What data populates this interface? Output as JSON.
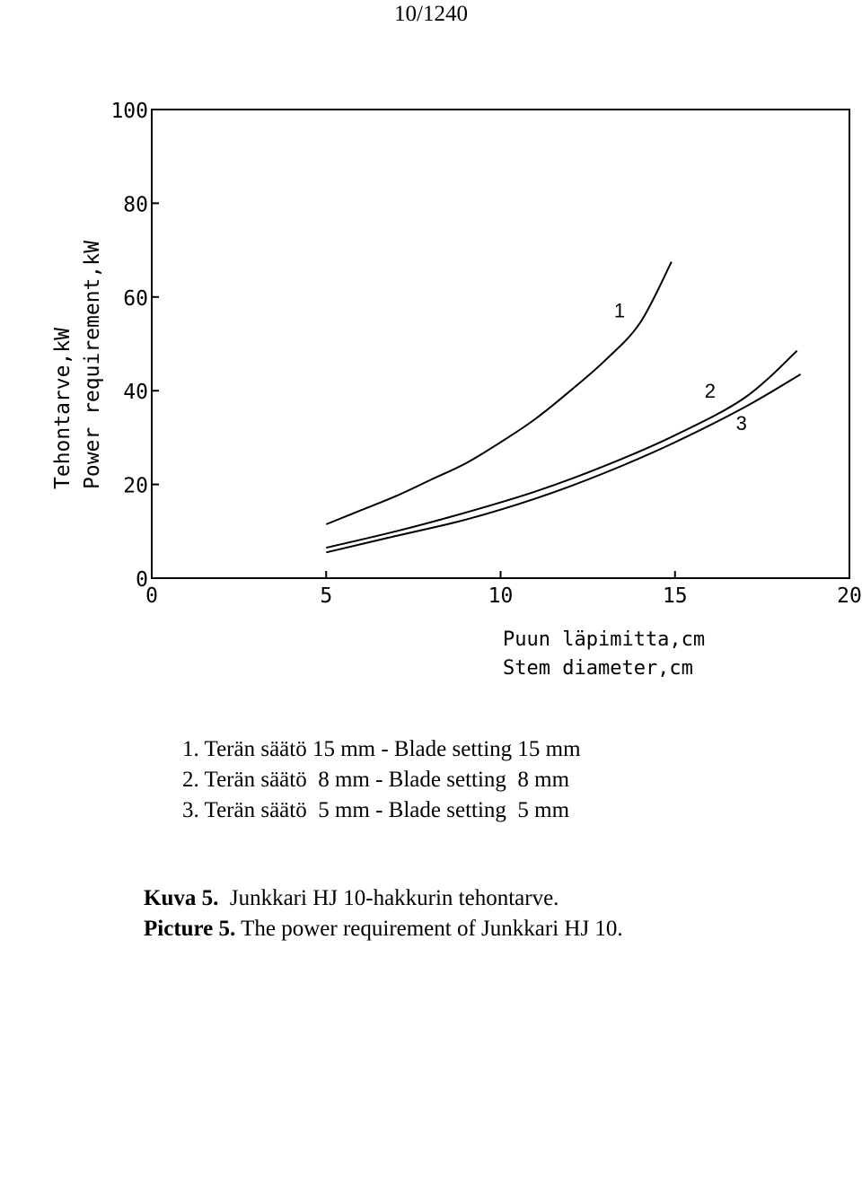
{
  "page_number": "10/1240",
  "chart_data": {
    "type": "line",
    "ylabel_fi": "Tehontarve,kW",
    "ylabel_en": "Power requirement,kW",
    "xlabel_fi": "Puun läpimitta,cm",
    "xlabel_en": "Stem diameter,cm",
    "xlim": [
      0,
      20
    ],
    "ylim": [
      0,
      100
    ],
    "x_ticks": [
      0,
      5,
      10,
      15,
      20
    ],
    "x_tick_labels": [
      "0",
      "5",
      "10",
      "15",
      "20"
    ],
    "y_ticks": [
      0,
      20,
      40,
      60,
      80,
      100
    ],
    "y_tick_labels": [
      "0",
      "20",
      "40",
      "60",
      "80",
      "100"
    ],
    "grid": false,
    "series": [
      {
        "name": "1",
        "x": [
          5.0,
          6.0,
          7.0,
          8.0,
          9.0,
          10.0,
          11.0,
          12.0,
          13.0,
          14.0,
          14.9
        ],
        "y": [
          11.5,
          14.5,
          17.5,
          21.0,
          24.5,
          29.0,
          34.0,
          40.0,
          46.5,
          54.5,
          67.5
        ]
      },
      {
        "name": "2",
        "x": [
          5.0,
          7.0,
          9.0,
          11.0,
          13.0,
          15.0,
          17.0,
          18.5
        ],
        "y": [
          6.5,
          10.0,
          14.0,
          18.5,
          24.0,
          30.5,
          38.5,
          48.5
        ]
      },
      {
        "name": "3",
        "x": [
          5.0,
          7.0,
          9.0,
          11.0,
          13.0,
          15.0,
          17.0,
          18.6
        ],
        "y": [
          5.5,
          9.0,
          12.5,
          17.0,
          22.5,
          29.0,
          36.5,
          43.5
        ]
      }
    ]
  },
  "legend_items": [
    "1. Terän säätö 15 mm - Blade setting 15 mm",
    "2. Terän säätö  8 mm - Blade setting  8 mm",
    "3. Terän säätö  5 mm - Blade setting  5 mm"
  ],
  "caption": {
    "fi_label": "Kuva 5.",
    "fi_text": "Junkkari HJ 10-hakkurin tehontarve.",
    "en_label": "Picture 5.",
    "en_text": "The power requirement of Junkkari HJ 10."
  }
}
